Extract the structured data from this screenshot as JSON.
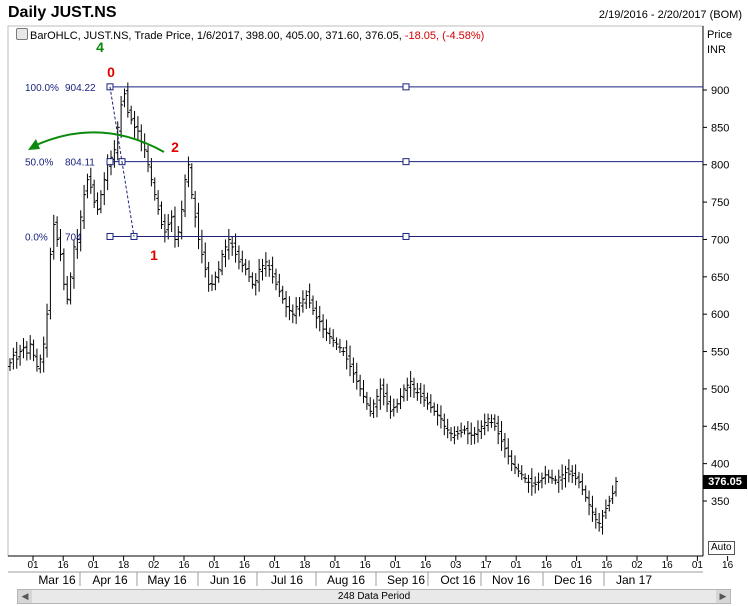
{
  "header": {
    "title": "Daily JUST.NS",
    "date_range": "2/19/2016 - 2/20/2017 (BOM)",
    "info": {
      "prefix": "BarOHLC, JUST.NS, Trade Price, 1/6/2017, 398.00, 405.00, 371.60, 376.05,",
      "change": " -18.05, (-4.58%)"
    }
  },
  "axis_units": {
    "price": "Price",
    "currency": "INR"
  },
  "last_price_label": "376.05",
  "auto_label": "Auto",
  "scrollbar": {
    "label": "248 Data Period"
  },
  "colors": {
    "bars": "#000000",
    "fib": "#1a237e",
    "wave_red": "#e00000",
    "wave_green": "#0b8a0b"
  },
  "chart_data": {
    "type": "bar",
    "style": "OHLC",
    "symbol": "JUST.NS",
    "ylim": [
      290,
      930
    ],
    "ylim_note": "price axis shown right",
    "y_ticks": [
      350,
      400,
      450,
      500,
      550,
      600,
      650,
      700,
      750,
      800,
      850,
      900
    ],
    "x_day_ticks": [
      "01",
      "16",
      "01",
      "18",
      "02",
      "16",
      "01",
      "16",
      "01",
      "18",
      "01",
      "16",
      "01",
      "16",
      "03",
      "17",
      "01",
      "16",
      "01",
      "16",
      "02",
      "16",
      "01",
      "16"
    ],
    "x_month_labels": [
      "Mar 16",
      "Apr 16",
      "May 16",
      "Jun 16",
      "Jul 16",
      "Aug 16",
      "Sep 16",
      "Oct 16",
      "Nov 16",
      "Dec 16",
      "Jan 17"
    ],
    "grid": false,
    "fib_levels": [
      {
        "label": "100.0%",
        "value_label": "904.22",
        "price": 904.22
      },
      {
        "label": "50.0%",
        "value_label": "804.11",
        "price": 804.11
      },
      {
        "label": "0.0%",
        "value_label": "704",
        "price": 704
      }
    ],
    "wave_labels": [
      {
        "text": "4",
        "color": "green"
      },
      {
        "text": "0",
        "color": "red"
      },
      {
        "text": "2",
        "color": "red"
      },
      {
        "text": "1",
        "color": "red"
      }
    ],
    "bar_data_note": "closing prices per session, approximate",
    "closes": [
      535,
      545,
      540,
      550,
      555,
      548,
      560,
      545,
      530,
      540,
      560,
      600,
      680,
      720,
      700,
      680,
      640,
      620,
      650,
      690,
      700,
      730,
      760,
      780,
      770,
      750,
      740,
      760,
      780,
      800,
      810,
      820,
      850,
      880,
      895,
      870,
      860,
      850,
      845,
      830,
      820,
      800,
      780,
      760,
      740,
      720,
      710,
      720,
      730,
      700,
      710,
      740,
      780,
      800,
      760,
      730,
      700,
      680,
      660,
      640,
      640,
      650,
      660,
      680,
      690,
      700,
      690,
      680,
      670,
      665,
      660,
      650,
      640,
      645,
      660,
      665,
      670,
      660,
      650,
      640,
      630,
      620,
      610,
      605,
      600,
      610,
      615,
      620,
      625,
      615,
      605,
      595,
      590,
      580,
      575,
      570,
      565,
      560,
      555,
      550,
      540,
      530,
      520,
      510,
      500,
      490,
      480,
      470,
      480,
      490,
      500,
      490,
      480,
      470,
      475,
      480,
      490,
      500,
      505,
      510,
      500,
      495,
      490,
      485,
      480,
      475,
      470,
      465,
      460,
      450,
      445,
      440,
      438,
      440,
      442,
      445,
      440,
      438,
      440,
      445,
      450,
      455,
      460,
      455,
      450,
      440,
      430,
      420,
      410,
      400,
      395,
      390,
      385,
      380,
      375,
      370,
      372,
      375,
      380,
      385,
      382,
      380,
      378,
      382,
      385,
      388,
      386,
      384,
      380,
      375,
      365,
      355,
      345,
      335,
      325,
      320,
      330,
      340,
      350,
      360,
      376
    ]
  }
}
